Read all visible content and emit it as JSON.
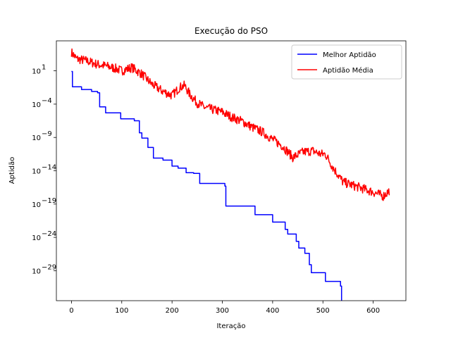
{
  "chart_data": {
    "type": "line",
    "title": "Execução do PSO",
    "xlabel": "Iteração",
    "ylabel": "Aptidão",
    "xlim": [
      -30,
      665
    ],
    "ylim_log10": [
      -33.5,
      5.5
    ],
    "yscale": "log",
    "grid": false,
    "legend_position": "top-right",
    "x_ticks": [
      0,
      100,
      200,
      300,
      400,
      500,
      600
    ],
    "y_ticks": [
      {
        "exp": 1,
        "label": "10",
        "sup": "1"
      },
      {
        "exp": -4,
        "label": "10",
        "sup": "−4"
      },
      {
        "exp": -9,
        "label": "10",
        "sup": "−9"
      },
      {
        "exp": -14,
        "label": "10",
        "sup": "−14"
      },
      {
        "exp": -19,
        "label": "10",
        "sup": "−19"
      },
      {
        "exp": -24,
        "label": "10",
        "sup": "−24"
      },
      {
        "exp": -29,
        "label": "10",
        "sup": "−29"
      }
    ],
    "series": [
      {
        "name": "Melhor Aptidão",
        "color": "#0000ff",
        "step": true,
        "x": [
          0,
          2,
          20,
          40,
          52,
          56,
          68,
          98,
          125,
          135,
          140,
          152,
          163,
          182,
          200,
          212,
          228,
          243,
          255,
          296,
          305,
          307,
          365,
          400,
          425,
          430,
          447,
          452,
          464,
          473,
          477,
          505,
          535,
          537
        ],
        "log10_y": [
          0.9,
          -1.4,
          -1.8,
          -2.1,
          -2.3,
          -4.4,
          -5.3,
          -6.2,
          -6.5,
          -8.3,
          -9.1,
          -10.5,
          -12.1,
          -12.4,
          -13.3,
          -13.6,
          -14.3,
          -14.4,
          -15.9,
          -15.9,
          -16.3,
          -19.3,
          -20.6,
          -21.7,
          -22.8,
          -23.5,
          -24.6,
          -25.6,
          -26.4,
          -28.1,
          -29.3,
          -30.6,
          -31.3,
          -33.5
        ]
      },
      {
        "name": "Aptidão Média",
        "color": "#ff0000",
        "step": false,
        "anchors_x": [
          0,
          10,
          30,
          50,
          70,
          90,
          100,
          120,
          140,
          160,
          180,
          200,
          215,
          225,
          235,
          250,
          265,
          280,
          300,
          320,
          340,
          360,
          380,
          400,
          420,
          440,
          460,
          480,
          495,
          505,
          520,
          540,
          560,
          580,
          600,
          620,
          632
        ],
        "anchors_log10_y": [
          3.8,
          2.8,
          2.5,
          2.0,
          1.7,
          1.3,
          1.0,
          1.5,
          0.5,
          -1.0,
          -2.0,
          -2.7,
          -1.5,
          -1.2,
          -2.5,
          -3.8,
          -4.5,
          -4.8,
          -5.2,
          -6.0,
          -6.6,
          -7.5,
          -8.2,
          -9.3,
          -10.3,
          -12.0,
          -11.2,
          -11.0,
          -11.5,
          -11.5,
          -13.5,
          -15.7,
          -16.2,
          -16.7,
          -17.2,
          -17.8,
          -17.0
        ],
        "noise_amplitude": 0.7
      }
    ]
  }
}
